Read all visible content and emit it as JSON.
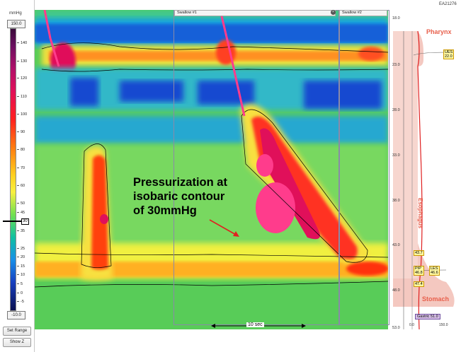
{
  "left_panel": {
    "unit": "mmHg",
    "scale_max": "150.0",
    "scale_min": "-10.0",
    "ticks": [
      "140",
      "130",
      "120",
      "110",
      "100",
      "90",
      "80",
      "70",
      "60",
      "50",
      "45",
      "40",
      "35",
      "30",
      "25",
      "20",
      "15",
      "10",
      "5",
      "0",
      "-5"
    ],
    "marker_value": "30",
    "buttons": {
      "set_range": "Set Range",
      "show_z": "Show Z"
    }
  },
  "swallows": [
    "Swallow #1",
    "Swallow #2"
  ],
  "annotation": {
    "line1": "Pressurization at",
    "line2": "isobaric contour",
    "line3": "of 30mmHg",
    "arrow_color": "#e02020"
  },
  "time_scale": "10 sec",
  "patient_id": "EA21276",
  "axis": {
    "depth_labels": [
      "18.0",
      "23.0",
      "28.0",
      "33.0",
      "38.0",
      "43.0",
      "48.0",
      "53.0"
    ],
    "bottom_labels": [
      "0.0",
      "150.0"
    ]
  },
  "anatomy": {
    "pharynx": "Pharynx",
    "esophagus": "Esophagus",
    "stomach": "Stomach",
    "tags": {
      "ues": "UES",
      "ues_val": "22.0",
      "les": "LES",
      "les_val": "46.6",
      "pip": "PIP",
      "pip_val": "46.8",
      "val_43": "43.7",
      "val_47": "47.4",
      "gastric": "Gastric 51.0"
    }
  },
  "colors": {
    "plot_bg": "#60d060",
    "high_pressure": "#e0105a",
    "low_pressure": "#1840c0",
    "region_fill": "#f4c8c0",
    "region_label": "#e8604c"
  }
}
